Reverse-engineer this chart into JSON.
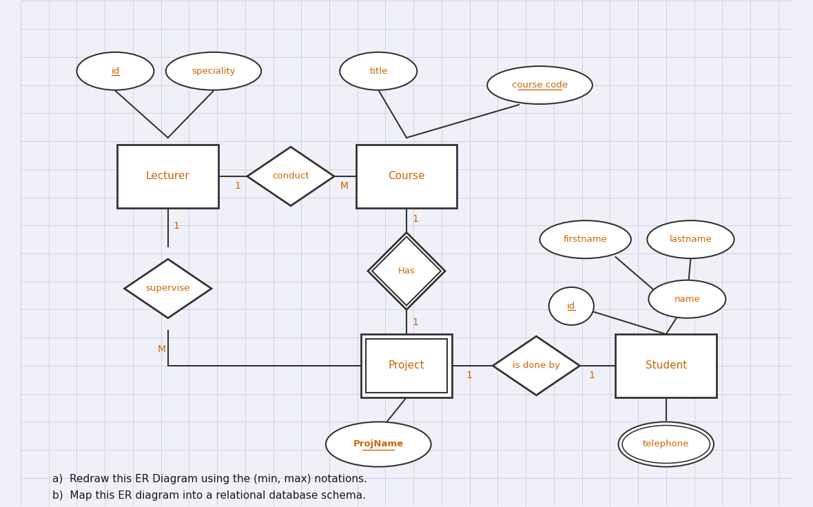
{
  "bg_color": "#f0f0f8",
  "grid_color": "#d0d0e8",
  "line_color": "#333333",
  "text_color": "#cc6600",
  "text_color_dark": "#1a1a1a",
  "text_a": "a)  Redraw this ER Diagram using the (min, max) notations.",
  "text_b": "b)  Map this ER diagram into a relational database schema.",
  "xlim": [
    0,
    11
  ],
  "ylim": [
    0.8,
    8.0
  ]
}
